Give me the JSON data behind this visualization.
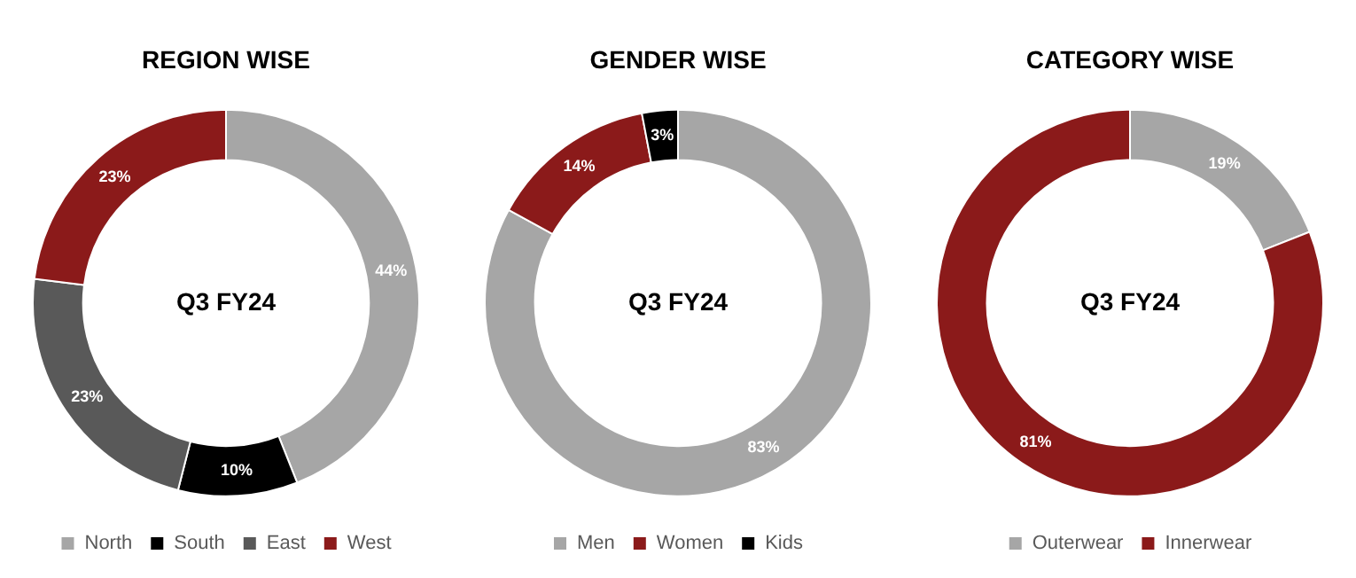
{
  "chart_data": [
    {
      "type": "donut",
      "title": "REGION WISE",
      "categories": [
        "North",
        "South",
        "East",
        "West"
      ],
      "values": [
        44,
        10,
        23,
        23
      ],
      "colors": [
        "#a6a6a6",
        "#000000",
        "#595959",
        "#8b1a1a"
      ],
      "value_labels": [
        "44%",
        "10%",
        "23%",
        "23%"
      ],
      "annotations": [
        "Q3 FY24"
      ],
      "legend": "bottom"
    },
    {
      "type": "donut",
      "title": "GENDER WISE",
      "categories": [
        "Men",
        "Women",
        "Kids"
      ],
      "values": [
        83,
        14,
        3
      ],
      "colors": [
        "#a6a6a6",
        "#8b1a1a",
        "#000000"
      ],
      "value_labels": [
        "83%",
        "14%",
        "3%"
      ],
      "annotations": [
        "Q3 FY24"
      ],
      "legend": "bottom"
    },
    {
      "type": "donut",
      "title": "CATEGORY WISE",
      "categories": [
        "Outerwear",
        "Innerwear"
      ],
      "values": [
        19,
        81
      ],
      "colors": [
        "#a6a6a6",
        "#8b1a1a"
      ],
      "value_labels": [
        "19%",
        "81%"
      ],
      "annotations": [
        "Q3 FY24"
      ],
      "legend": "bottom"
    }
  ]
}
